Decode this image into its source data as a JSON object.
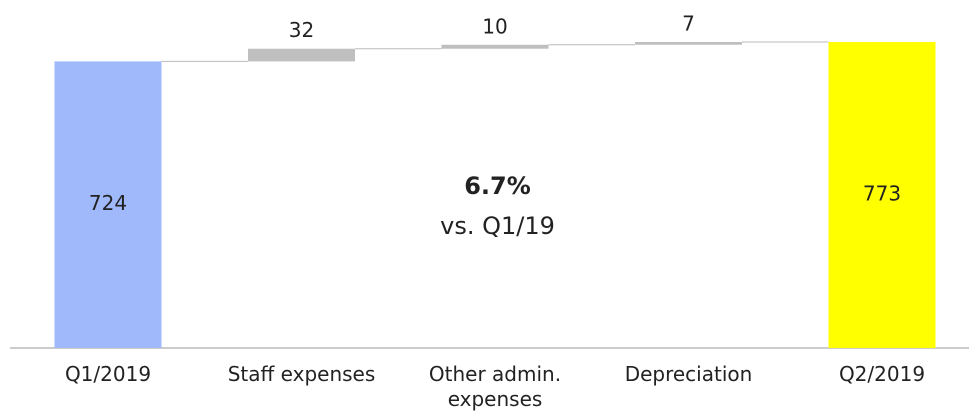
{
  "chart_data": {
    "type": "waterfall",
    "categories": [
      "Q1/2019",
      "Staff expenses",
      "Other admin. expenses",
      "Depreciation",
      "Q2/2019"
    ],
    "values": [
      724,
      32,
      10,
      7,
      773
    ],
    "colors": [
      "#a0b9fb",
      "#bfbfbf",
      "#bfbfbf",
      "#bfbfbf",
      "#ffff00"
    ],
    "annotation": {
      "title": "6.7%",
      "text": "vs. Q1/19"
    }
  }
}
